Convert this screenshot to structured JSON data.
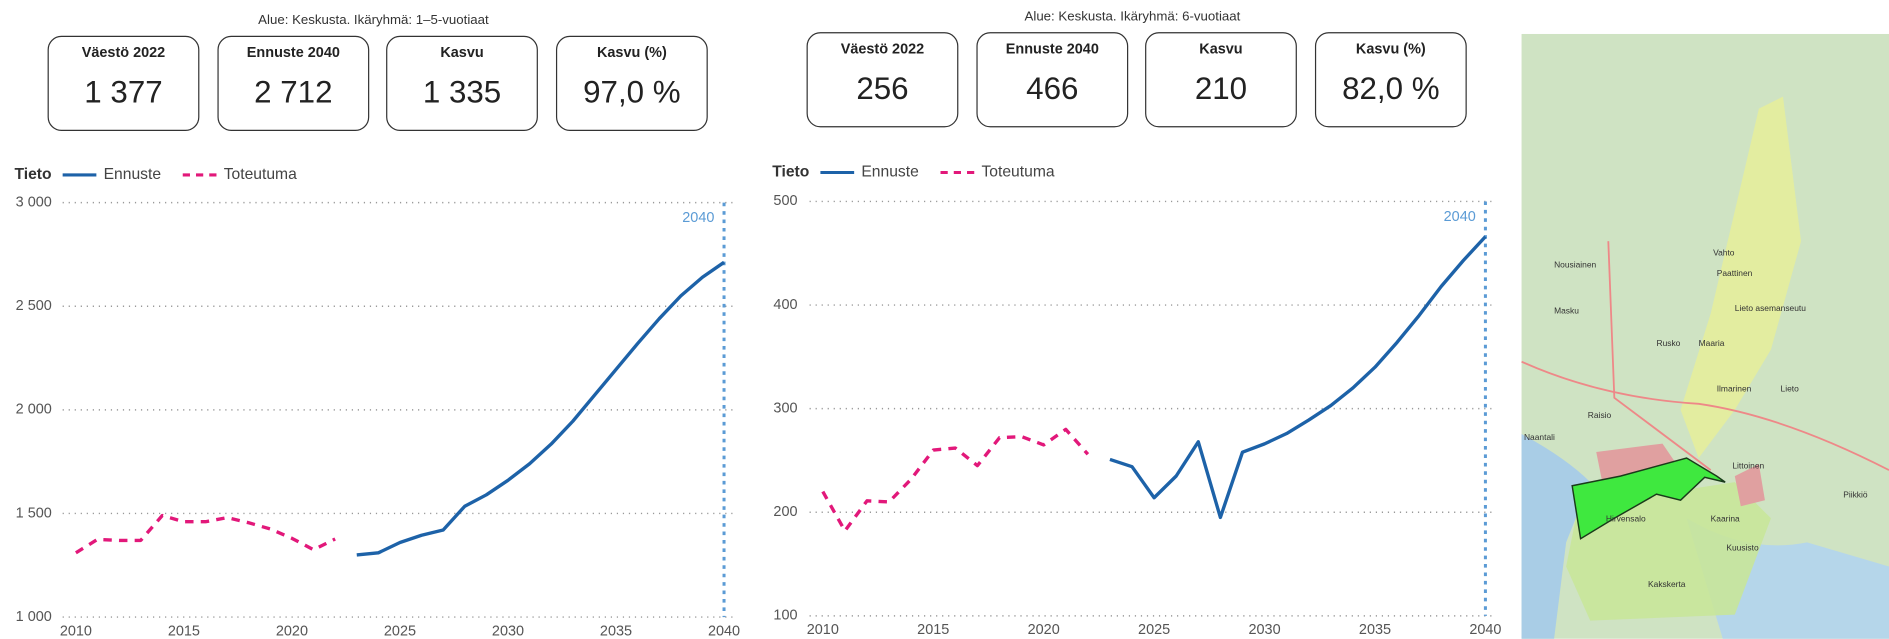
{
  "panels": [
    {
      "caption": "Alue: Keskusta. Ikäryhmä: 1–5-vuotiaat",
      "kpis": [
        {
          "label": "Väestö 2022",
          "value": "1 377"
        },
        {
          "label": "Ennuste 2040",
          "value": "2 712"
        },
        {
          "label": "Kasvu",
          "value": "1 335"
        },
        {
          "label": "Kasvu (%)",
          "value": "97,0 %"
        }
      ]
    },
    {
      "caption": "Alue: Keskusta. Ikäryhmä: 6-vuotiaat",
      "kpis": [
        {
          "label": "Väestö 2022",
          "value": "256"
        },
        {
          "label": "Ennuste 2040",
          "value": "466"
        },
        {
          "label": "Kasvu",
          "value": "210"
        },
        {
          "label": "Kasvu (%)",
          "value": "82,0 %"
        }
      ]
    }
  ],
  "chart_data": [
    {
      "type": "line",
      "legend_title": "Tieto",
      "x": [
        2010,
        2011,
        2012,
        2013,
        2014,
        2015,
        2016,
        2017,
        2018,
        2019,
        2020,
        2021,
        2022,
        2023,
        2024,
        2025,
        2026,
        2027,
        2028,
        2029,
        2030,
        2031,
        2032,
        2033,
        2034,
        2035,
        2036,
        2037,
        2038,
        2039,
        2040
      ],
      "xlim": [
        2010,
        2040
      ],
      "xticks": [
        2010,
        2015,
        2020,
        2025,
        2030,
        2035,
        2040
      ],
      "ylim": [
        1000,
        3000
      ],
      "yticks": [
        {
          "value": 1000,
          "label": "1 000"
        },
        {
          "value": 1500,
          "label": "1 500"
        },
        {
          "value": 2000,
          "label": "2 000"
        },
        {
          "value": 2500,
          "label": "2 500"
        },
        {
          "value": 3000,
          "label": "3 000"
        }
      ],
      "grid": true,
      "marker": {
        "x": 2040,
        "label": "2040",
        "color": "#5b9bd5"
      },
      "series": [
        {
          "name": "Ennuste",
          "color": "#1d62a8",
          "dash": false,
          "values": [
            null,
            null,
            null,
            null,
            null,
            null,
            null,
            null,
            null,
            null,
            null,
            null,
            null,
            1300,
            1310,
            1360,
            1395,
            1420,
            1535,
            1590,
            1660,
            1740,
            1835,
            1945,
            2070,
            2195,
            2320,
            2440,
            2550,
            2640,
            2712
          ]
        },
        {
          "name": "Toteutuma",
          "color": "#e2187a",
          "dash": true,
          "values": [
            1310,
            1375,
            1370,
            1370,
            1490,
            1460,
            1460,
            1480,
            1455,
            1425,
            1380,
            1325,
            1377,
            null,
            null,
            null,
            null,
            null,
            null,
            null,
            null,
            null,
            null,
            null,
            null,
            null,
            null,
            null,
            null,
            null,
            null
          ]
        }
      ]
    },
    {
      "type": "line",
      "legend_title": "Tieto",
      "x": [
        2010,
        2011,
        2012,
        2013,
        2014,
        2015,
        2016,
        2017,
        2018,
        2019,
        2020,
        2021,
        2022,
        2023,
        2024,
        2025,
        2026,
        2027,
        2028,
        2029,
        2030,
        2031,
        2032,
        2033,
        2034,
        2035,
        2036,
        2037,
        2038,
        2039,
        2040
      ],
      "xlim": [
        2010,
        2040
      ],
      "xticks": [
        2010,
        2015,
        2020,
        2025,
        2030,
        2035,
        2040
      ],
      "ylim": [
        100,
        500
      ],
      "yticks": [
        100,
        200,
        300,
        400,
        500
      ],
      "grid": true,
      "marker": {
        "x": 2040,
        "label": "2040",
        "color": "#5b9bd5"
      },
      "series": [
        {
          "name": "Ennuste",
          "color": "#1d62a8",
          "dash": false,
          "values": [
            null,
            null,
            null,
            null,
            null,
            null,
            null,
            null,
            null,
            null,
            null,
            null,
            null,
            251,
            244,
            214,
            235,
            268,
            195,
            258,
            266,
            276,
            289,
            303,
            320,
            340,
            364,
            390,
            418,
            443,
            466
          ]
        },
        {
          "name": "Toteutuma",
          "color": "#e2187a",
          "dash": true,
          "values": [
            220,
            182,
            211,
            210,
            232,
            260,
            262,
            245,
            272,
            273,
            265,
            280,
            256,
            null,
            null,
            null,
            null,
            null,
            null,
            null,
            null,
            null,
            null,
            null,
            null,
            null,
            null,
            null,
            null,
            null,
            null
          ]
        }
      ]
    }
  ],
  "map": {
    "places": [
      "Nousiainen",
      "Vahto",
      "Paattinen",
      "Masku",
      "Lieto asemanseutu",
      "Rusko",
      "Maaria",
      "Ilmarinen",
      "Lieto",
      "Raisio",
      "Naantali",
      "Littoinen",
      "Piikkiö",
      "Hirvensalo",
      "Kaarina",
      "Kuusisto",
      "Kakskerta"
    ]
  }
}
